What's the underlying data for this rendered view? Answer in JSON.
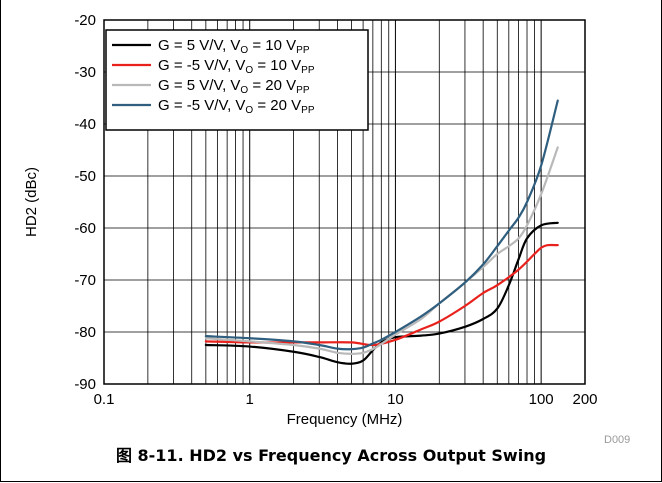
{
  "figure": {
    "caption": "图 8-11. HD2 vs Frequency Across Output Swing",
    "source_id": "D009"
  },
  "chart_data": {
    "type": "line",
    "title": "",
    "xlabel": "Frequency (MHz)",
    "ylabel": "HD2 (dBc)",
    "x_scale": "log",
    "xlim": [
      0.1,
      200
    ],
    "ylim": [
      -90,
      -20
    ],
    "x_ticks": [
      0.1,
      1,
      10,
      100,
      200
    ],
    "x_tick_labels": [
      "0.1",
      "1",
      "10",
      "100",
      "200"
    ],
    "y_ticks": [
      -90,
      -80,
      -70,
      -60,
      -50,
      -40,
      -30,
      -20
    ],
    "y_tick_labels": [
      "-90",
      "-80",
      "-70",
      "-60",
      "-50",
      "-40",
      "-30",
      "-20"
    ],
    "grid": true,
    "legend_position": "top-left",
    "series": [
      {
        "name": "G = 5 V/V, VO = 10 VPP",
        "legend_parts": [
          [
            "G = 5 V/V, V",
            ""
          ],
          [
            "O",
            "sub"
          ],
          [
            " = 10 V",
            ""
          ],
          [
            "PP",
            "sub"
          ]
        ],
        "color": "#000000",
        "x": [
          0.5,
          1,
          2,
          3,
          4,
          5,
          6,
          7,
          8,
          10,
          15,
          20,
          30,
          40,
          50,
          60,
          70,
          80,
          100,
          130
        ],
        "y": [
          -82.5,
          -82.8,
          -83.8,
          -84.8,
          -85.8,
          -86.1,
          -85.5,
          -83.5,
          -82,
          -81,
          -80.7,
          -80.3,
          -79,
          -77.5,
          -75.5,
          -71,
          -66,
          -62,
          -59.5,
          -59
        ]
      },
      {
        "name": "G = -5 V/V, VO = 10 VPP",
        "legend_parts": [
          [
            "G = -5 V/V, V",
            ""
          ],
          [
            "O",
            "sub"
          ],
          [
            " = 10 V",
            ""
          ],
          [
            "PP",
            "sub"
          ]
        ],
        "color": "#e8211c",
        "x": [
          0.5,
          1,
          2,
          3,
          5,
          7,
          10,
          15,
          20,
          30,
          40,
          50,
          70,
          90,
          100,
          110,
          130
        ],
        "y": [
          -81.8,
          -82,
          -82,
          -82,
          -82,
          -82.5,
          -81.5,
          -79.5,
          -78,
          -75,
          -72.5,
          -71,
          -68,
          -65,
          -63.8,
          -63.3,
          -63.3
        ]
      },
      {
        "name": "G = 5 V/V, VO = 20 VPP",
        "legend_parts": [
          [
            "G = 5 V/V, V",
            ""
          ],
          [
            "O",
            "sub"
          ],
          [
            " = 20 V",
            ""
          ],
          [
            "PP",
            "sub"
          ]
        ],
        "color": "#b9b9b9",
        "x": [
          0.5,
          1,
          2,
          3,
          4,
          5,
          6,
          7,
          8,
          10,
          15,
          20,
          30,
          40,
          50,
          60,
          70,
          80,
          100,
          130
        ],
        "y": [
          -81.2,
          -81.8,
          -82.5,
          -83.2,
          -84,
          -84.2,
          -84,
          -83.3,
          -82.3,
          -80.5,
          -77.5,
          -74.5,
          -70.5,
          -67.5,
          -65,
          -63.5,
          -62,
          -59.5,
          -53.5,
          -44.5
        ]
      },
      {
        "name": "G = -5 V/V, VO = 20 VPP",
        "legend_parts": [
          [
            "G = -5 V/V, V",
            ""
          ],
          [
            "O",
            "sub"
          ],
          [
            " = 20 V",
            ""
          ],
          [
            "PP",
            "sub"
          ]
        ],
        "color": "#2f5e7e",
        "x": [
          0.5,
          1,
          2,
          3,
          4,
          5,
          6,
          7,
          8,
          10,
          15,
          20,
          30,
          40,
          50,
          60,
          70,
          80,
          100,
          130
        ],
        "y": [
          -80.8,
          -81.2,
          -81.8,
          -82.5,
          -83.2,
          -83.3,
          -83,
          -82.2,
          -81.5,
          -80,
          -77,
          -74.5,
          -70.5,
          -67,
          -63.5,
          -60.5,
          -58,
          -55,
          -48,
          -35.5
        ]
      }
    ]
  }
}
